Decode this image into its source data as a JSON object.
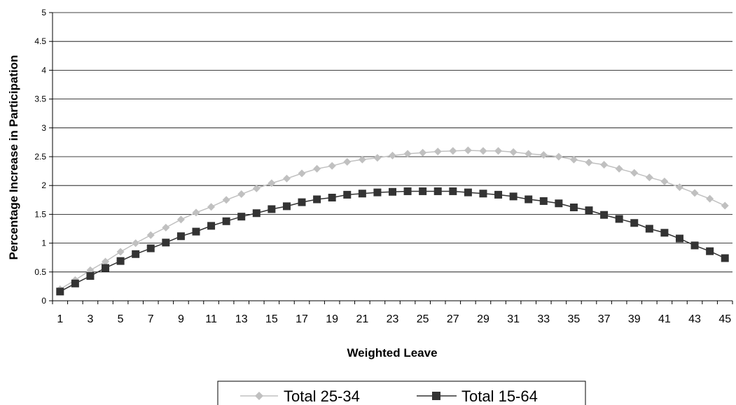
{
  "chart_data": {
    "type": "line",
    "title": "",
    "xlabel": "Weighted Leave",
    "ylabel": "Percentage Increase in Participation",
    "x": [
      1,
      2,
      3,
      4,
      5,
      6,
      7,
      8,
      9,
      10,
      11,
      12,
      13,
      14,
      15,
      16,
      17,
      18,
      19,
      20,
      21,
      22,
      23,
      24,
      25,
      26,
      27,
      28,
      29,
      30,
      31,
      32,
      33,
      34,
      35,
      36,
      37,
      38,
      39,
      40,
      41,
      42,
      43,
      44,
      45
    ],
    "x_tick_labels": [
      "1",
      "3",
      "5",
      "7",
      "9",
      "11",
      "13",
      "15",
      "17",
      "19",
      "21",
      "23",
      "25",
      "27",
      "29",
      "31",
      "33",
      "35",
      "37",
      "39",
      "41",
      "43",
      "45"
    ],
    "y_tick_labels": [
      "0",
      "0.5",
      "1",
      "1.5",
      "2",
      "2.5",
      "3",
      "3.5",
      "4",
      "4.5",
      "5"
    ],
    "ylim": [
      0,
      5
    ],
    "grid": "horizontal",
    "legend_position": "bottom",
    "series": [
      {
        "name": "Total 25-34",
        "color": "#c0c0c0",
        "marker": "diamond",
        "values": [
          0.2,
          0.36,
          0.53,
          0.68,
          0.85,
          1.0,
          1.14,
          1.27,
          1.41,
          1.53,
          1.63,
          1.75,
          1.85,
          1.95,
          2.04,
          2.12,
          2.21,
          2.29,
          2.34,
          2.41,
          2.45,
          2.48,
          2.52,
          2.55,
          2.57,
          2.59,
          2.6,
          2.61,
          2.6,
          2.6,
          2.58,
          2.55,
          2.53,
          2.5,
          2.45,
          2.4,
          2.36,
          2.29,
          2.22,
          2.14,
          2.07,
          1.97,
          1.87,
          1.77,
          1.65
        ]
      },
      {
        "name": "Total 15-64",
        "color": "#333333",
        "marker": "square",
        "values": [
          0.16,
          0.3,
          0.43,
          0.57,
          0.69,
          0.81,
          0.91,
          1.01,
          1.12,
          1.2,
          1.3,
          1.38,
          1.46,
          1.52,
          1.59,
          1.64,
          1.71,
          1.76,
          1.79,
          1.84,
          1.86,
          1.88,
          1.89,
          1.9,
          1.9,
          1.9,
          1.9,
          1.88,
          1.86,
          1.84,
          1.81,
          1.76,
          1.73,
          1.69,
          1.62,
          1.57,
          1.49,
          1.42,
          1.35,
          1.25,
          1.18,
          1.08,
          0.96,
          0.86,
          0.74
        ]
      }
    ]
  }
}
